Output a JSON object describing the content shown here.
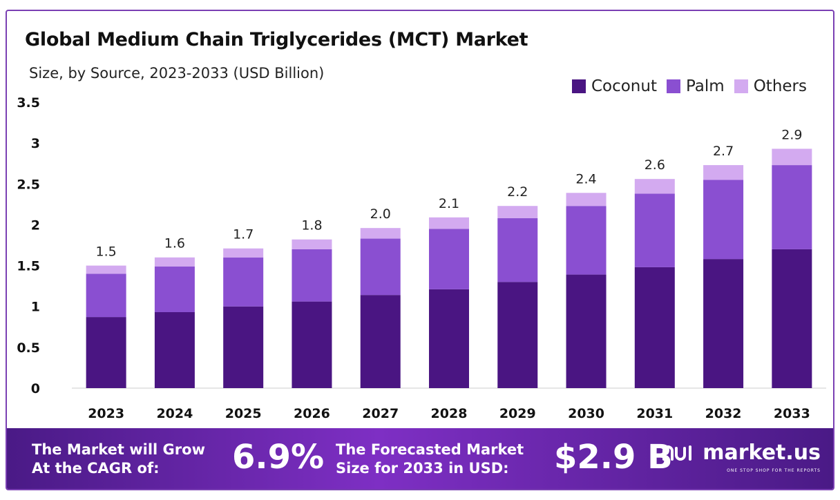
{
  "title": "Global Medium Chain Triglycerides (MCT) Market",
  "subtitle": "Size, by Source, 2023-2033 (USD Billion)",
  "colors": {
    "coconut": "#4a1582",
    "palm": "#8a4fd1",
    "others": "#d3aaf0",
    "banner": "#6b2cb0"
  },
  "chart_data": {
    "type": "bar",
    "stacked": true,
    "categories": [
      "2023",
      "2024",
      "2025",
      "2026",
      "2027",
      "2028",
      "2029",
      "2030",
      "2031",
      "2032",
      "2033"
    ],
    "series": [
      {
        "name": "Coconut",
        "values": [
          0.87,
          0.93,
          1.0,
          1.06,
          1.14,
          1.21,
          1.3,
          1.39,
          1.48,
          1.58,
          1.7
        ]
      },
      {
        "name": "Palm",
        "values": [
          0.53,
          0.56,
          0.6,
          0.64,
          0.69,
          0.74,
          0.78,
          0.84,
          0.9,
          0.97,
          1.03
        ]
      },
      {
        "name": "Others",
        "values": [
          0.1,
          0.11,
          0.11,
          0.12,
          0.13,
          0.14,
          0.15,
          0.16,
          0.18,
          0.18,
          0.2
        ]
      }
    ],
    "totals": [
      "1.5",
      "1.6",
      "1.7",
      "1.8",
      "2.0",
      "2.1",
      "2.2",
      "2.4",
      "2.6",
      "2.7",
      "2.9"
    ],
    "yticks": [
      "0",
      "0.5",
      "1",
      "1.5",
      "2",
      "2.5",
      "3",
      "3.5"
    ],
    "ylim": [
      0,
      3.5
    ],
    "legend_position": "top-right",
    "grid": false
  },
  "banner": {
    "cagr_label_line1": "The Market will Grow",
    "cagr_label_line2": "At the CAGR of:",
    "cagr_value": "6.9%",
    "forecast_label_line1": "The Forecasted Market",
    "forecast_label_line2": "Size for 2033 in USD:",
    "forecast_value": "$2.9 B",
    "brand": "market.us",
    "brand_tagline": "ONE STOP SHOP FOR THE REPORTS"
  }
}
